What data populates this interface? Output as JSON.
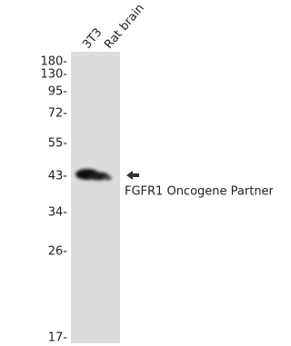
{
  "lanes": [
    "3T3",
    "Rat brain"
  ],
  "markers": [
    "180-",
    "130-",
    "95-",
    "72-",
    "55-",
    "43-",
    "34-",
    "26-",
    "17-"
  ],
  "band_label": "FGFR1 Oncogene Partner"
}
